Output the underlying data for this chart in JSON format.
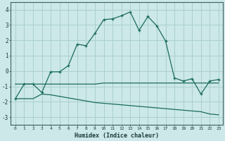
{
  "xlabel": "Humidex (Indice chaleur)",
  "background_color": "#cce8e8",
  "grid_color": "#aacfcf",
  "line_color": "#1a6b5e",
  "xlim": [
    -0.5,
    23.5
  ],
  "ylim": [
    -3.5,
    4.5
  ],
  "yticks": [
    -3,
    -2,
    -1,
    0,
    1,
    2,
    3,
    4
  ],
  "xticks": [
    0,
    1,
    2,
    3,
    4,
    5,
    6,
    7,
    8,
    9,
    10,
    11,
    12,
    13,
    14,
    15,
    16,
    17,
    18,
    19,
    20,
    21,
    22,
    23
  ],
  "curve1_x": [
    0,
    1,
    2,
    3,
    4,
    5,
    6,
    7,
    8,
    9,
    10,
    11,
    12,
    13,
    14,
    15,
    16,
    17,
    18,
    19,
    20,
    21,
    22,
    23
  ],
  "curve1_y": [
    -1.8,
    -0.85,
    -0.85,
    -1.4,
    -0.05,
    -0.05,
    0.35,
    1.75,
    1.65,
    2.45,
    3.35,
    3.4,
    3.6,
    3.85,
    2.65,
    3.55,
    2.95,
    1.95,
    -0.45,
    -0.65,
    -0.5,
    -1.5,
    -0.65,
    -0.55
  ],
  "curve2_x": [
    0,
    1,
    2,
    3,
    4,
    5,
    6,
    7,
    8,
    9,
    10,
    11,
    12,
    13,
    14,
    15,
    16,
    17,
    18,
    19,
    20,
    21,
    22,
    23
  ],
  "curve2_y": [
    -0.85,
    -0.85,
    -0.85,
    -0.85,
    -0.85,
    -0.85,
    -0.85,
    -0.85,
    -0.85,
    -0.85,
    -0.78,
    -0.78,
    -0.78,
    -0.78,
    -0.78,
    -0.78,
    -0.78,
    -0.78,
    -0.78,
    -0.78,
    -0.78,
    -0.78,
    -0.78,
    -0.78
  ],
  "curve3_x": [
    0,
    1,
    2,
    3,
    4,
    5,
    6,
    7,
    8,
    9,
    10,
    11,
    12,
    13,
    14,
    15,
    16,
    17,
    18,
    19,
    20,
    21,
    22,
    23
  ],
  "curve3_y": [
    -1.8,
    -1.8,
    -1.8,
    -1.5,
    -1.55,
    -1.65,
    -1.75,
    -1.85,
    -1.95,
    -2.05,
    -2.1,
    -2.15,
    -2.2,
    -2.25,
    -2.3,
    -2.35,
    -2.4,
    -2.45,
    -2.5,
    -2.55,
    -2.6,
    -2.65,
    -2.8,
    -2.85
  ]
}
